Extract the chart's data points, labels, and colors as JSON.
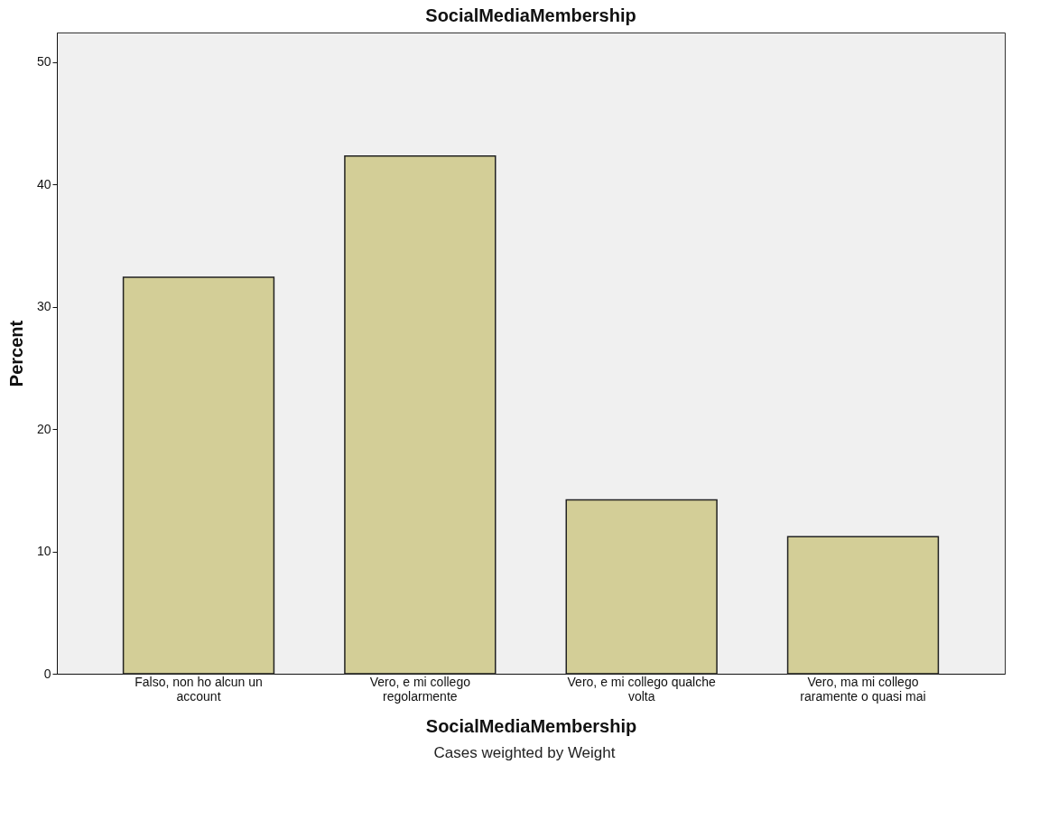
{
  "chart_data": {
    "type": "bar",
    "title": "SocialMediaMembership",
    "xlabel": "SocialMediaMembership",
    "ylabel": "Percent",
    "categories": [
      "Falso, non ho alcun un account",
      "Vero, e mi collego regolarmente",
      "Vero, e mi collego qualche volta",
      "Vero, ma mi collego raramente o quasi mai"
    ],
    "values": [
      32.4,
      42.3,
      14.2,
      11.2
    ],
    "color": "#d3ce97",
    "ylim": [
      0,
      52.4
    ],
    "yticks": [
      0,
      10,
      20,
      30,
      40,
      50
    ],
    "grid": false,
    "annotations": [
      "Cases weighted by Weight"
    ]
  }
}
